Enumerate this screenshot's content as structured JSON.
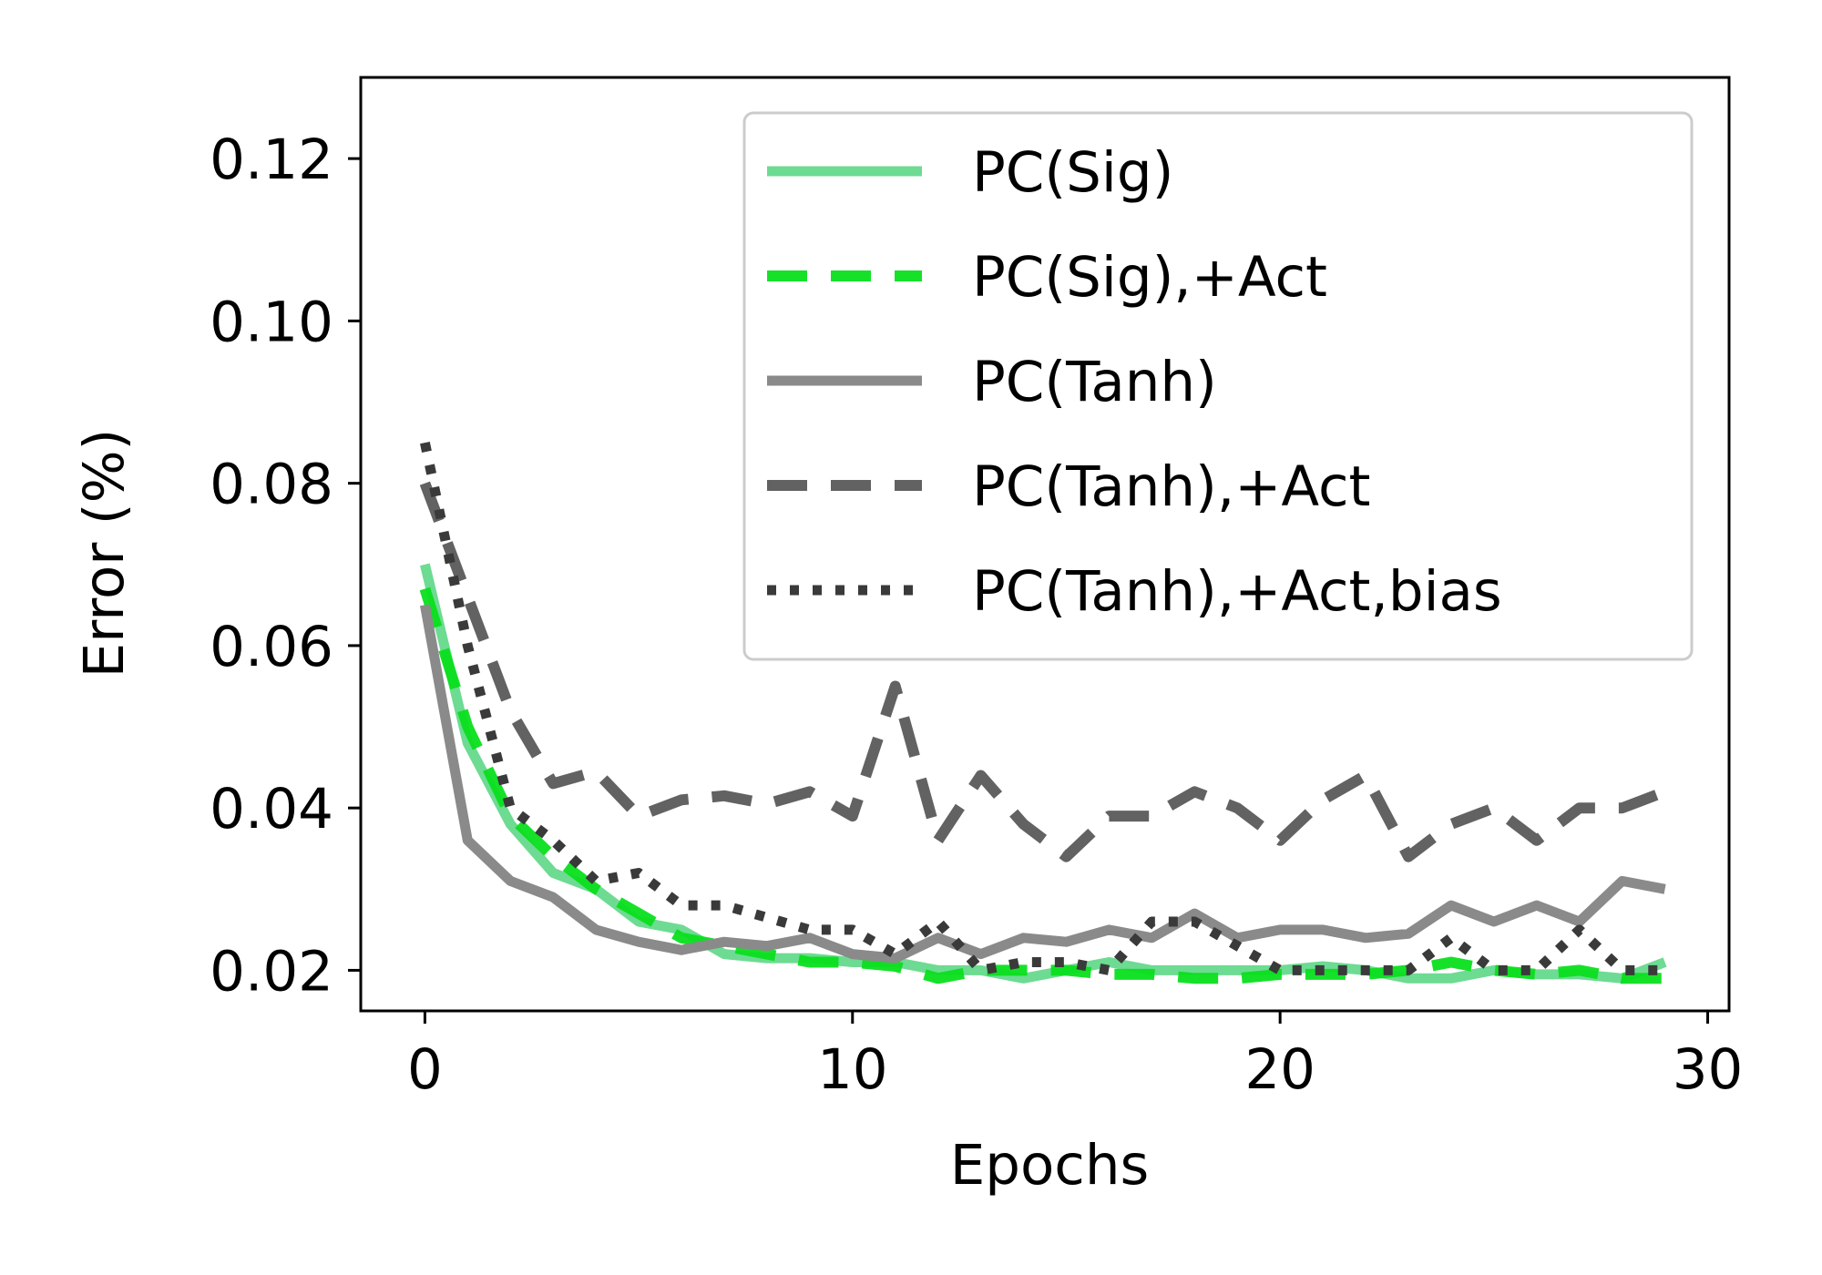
{
  "chart_data": {
    "type": "line",
    "xlabel": "Epochs",
    "ylabel": "Error (%)",
    "xlim": [
      -1.5,
      30.5
    ],
    "ylim": [
      0.015,
      0.13
    ],
    "xticks": [
      0,
      10,
      20,
      30
    ],
    "xtick_labels": [
      "0",
      "10",
      "20",
      "30"
    ],
    "yticks": [
      0.02,
      0.04,
      0.06,
      0.08,
      0.1,
      0.12
    ],
    "ytick_labels": [
      "0.02",
      "0.04",
      "0.06",
      "0.08",
      "0.10",
      "0.12"
    ],
    "grid": false,
    "legend_position": "top-right",
    "x": [
      0,
      1,
      2,
      3,
      4,
      5,
      6,
      7,
      8,
      9,
      10,
      11,
      12,
      13,
      14,
      15,
      16,
      17,
      18,
      19,
      20,
      21,
      22,
      23,
      24,
      25,
      26,
      27,
      28,
      29
    ],
    "series": [
      {
        "name": "PC(Sig)",
        "color": "#3ccf6e",
        "opacity": 0.75,
        "style": "solid",
        "values": [
          0.07,
          0.048,
          0.038,
          0.032,
          0.03,
          0.026,
          0.025,
          0.022,
          0.0215,
          0.0215,
          0.021,
          0.021,
          0.02,
          0.02,
          0.019,
          0.02,
          0.021,
          0.02,
          0.02,
          0.02,
          0.02,
          0.0205,
          0.02,
          0.019,
          0.019,
          0.02,
          0.0195,
          0.0195,
          0.019,
          0.021
        ]
      },
      {
        "name": "PC(Sig),+Act",
        "color": "#0adf1e",
        "opacity": 0.95,
        "style": "dashed",
        "values": [
          0.067,
          0.05,
          0.039,
          0.034,
          0.03,
          0.027,
          0.024,
          0.023,
          0.022,
          0.021,
          0.021,
          0.0205,
          0.019,
          0.02,
          0.02,
          0.02,
          0.0195,
          0.0195,
          0.019,
          0.019,
          0.0195,
          0.0195,
          0.0195,
          0.02,
          0.021,
          0.02,
          0.0195,
          0.02,
          0.019,
          0.019
        ]
      },
      {
        "name": "PC(Tanh)",
        "color": "#8a8a8a",
        "opacity": 1,
        "style": "solid",
        "values": [
          0.065,
          0.036,
          0.031,
          0.029,
          0.025,
          0.0235,
          0.0225,
          0.0235,
          0.023,
          0.024,
          0.022,
          0.0215,
          0.024,
          0.022,
          0.024,
          0.0235,
          0.025,
          0.024,
          0.027,
          0.024,
          0.025,
          0.025,
          0.024,
          0.0245,
          0.028,
          0.026,
          0.028,
          0.026,
          0.031,
          0.03
        ]
      },
      {
        "name": "PC(Tanh),+Act",
        "color": "#626262",
        "opacity": 1,
        "style": "dashed",
        "values": [
          0.08,
          0.066,
          0.052,
          0.043,
          0.0445,
          0.039,
          0.041,
          0.0415,
          0.0405,
          0.042,
          0.039,
          0.055,
          0.036,
          0.044,
          0.038,
          0.034,
          0.039,
          0.039,
          0.042,
          0.04,
          0.036,
          0.041,
          0.044,
          0.034,
          0.038,
          0.04,
          0.036,
          0.04,
          0.04,
          0.042
        ]
      },
      {
        "name": "PC(Tanh),+Act,bias",
        "color": "#3a3a3a",
        "opacity": 1,
        "style": "dotted",
        "values": [
          0.085,
          0.06,
          0.04,
          0.036,
          0.031,
          0.032,
          0.028,
          0.028,
          0.0265,
          0.025,
          0.025,
          0.022,
          0.026,
          0.02,
          0.021,
          0.021,
          0.02,
          0.026,
          0.026,
          0.023,
          0.02,
          0.02,
          0.02,
          0.02,
          0.024,
          0.02,
          0.02,
          0.025,
          0.02,
          0.02
        ]
      }
    ]
  }
}
